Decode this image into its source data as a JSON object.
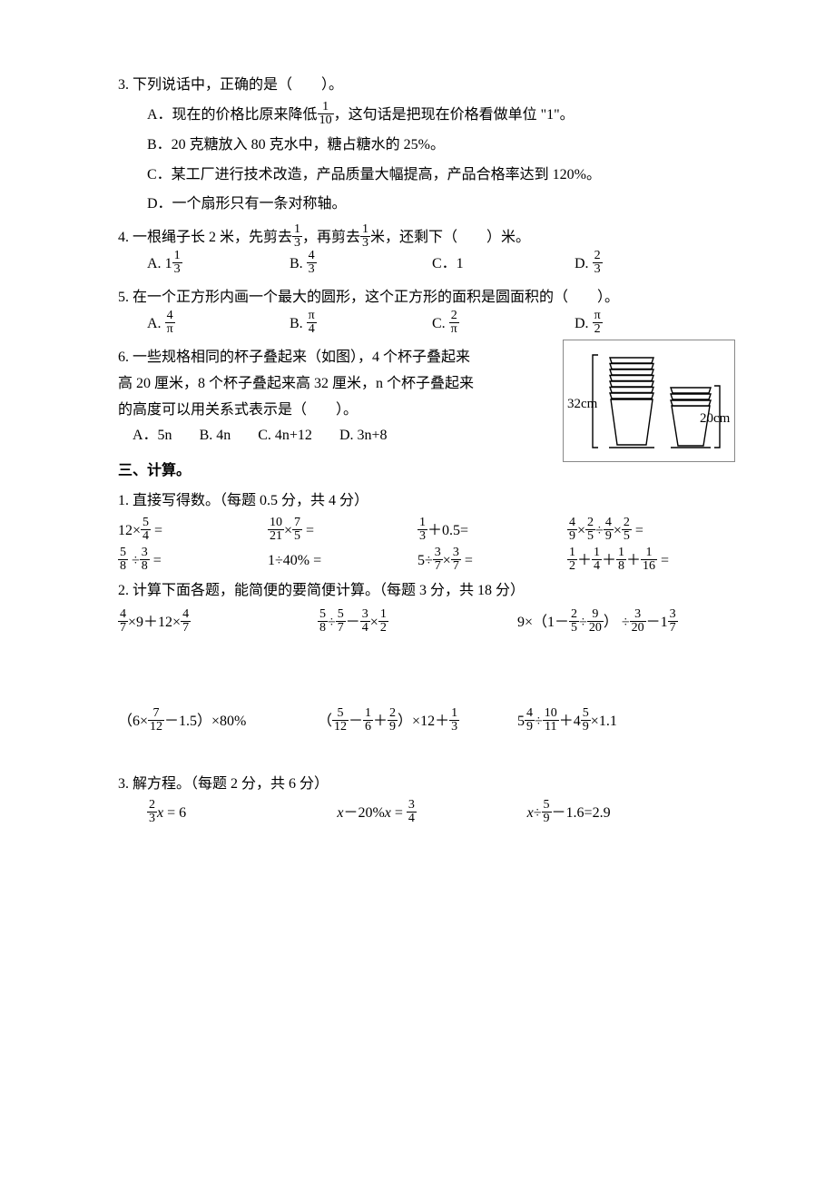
{
  "q3": {
    "stem": "3. 下列说话中，正确的是（　　）。",
    "A_pre": "A．现在的价格比原来降低",
    "A_frac_n": "1",
    "A_frac_d": "10",
    "A_post": "，这句话是把现在价格看做单位 \"1\"。",
    "B": "B．20 克糖放入 80 克水中，糖占糖水的 25%。",
    "C": "C．某工厂进行技术改造，产品质量大幅提高，产品合格率达到 120%。",
    "D": "D．一个扇形只有一条对称轴。"
  },
  "q4": {
    "stem_pre": "4. 一根绳子长 2 米，先剪去",
    "f1_n": "1",
    "f1_d": "3",
    "stem_mid": "，再剪去",
    "f2_n": "1",
    "f2_d": "3",
    "stem_post": "米，还剩下（　　）米。",
    "A_label": "A. ",
    "A_whole": "1",
    "A_n": "1",
    "A_d": "3",
    "B_label": "B. ",
    "B_n": "4",
    "B_d": "3",
    "C": "C．1",
    "D_label": "D. ",
    "D_n": "2",
    "D_d": "3"
  },
  "q5": {
    "stem": "5. 在一个正方形内画一个最大的圆形，这个正方形的面积是圆面积的（　　）。",
    "A_label": "A. ",
    "A_n": "4",
    "A_d": "π",
    "B_label": "B. ",
    "B_n": "π",
    "B_d": "4",
    "C_label": "C. ",
    "C_n": "2",
    "C_d": "π",
    "D_label": "D. ",
    "D_n": "π",
    "D_d": "2"
  },
  "q6": {
    "l1": "6. 一些规格相同的杯子叠起来（如图），4 个杯子叠起来",
    "l2": "高 20 厘米，8 个杯子叠起来高 32 厘米，n 个杯子叠起来",
    "l3": "的高度可以用关系式表示是（　　）。",
    "A": "A．5n",
    "B": "B. 4n",
    "C": "C. 4n+12",
    "D": "D. 3n+8",
    "fig_left": "32cm",
    "fig_right": "20cm",
    "fig_cup_color": "#000000",
    "fig_line_width": 1.4
  },
  "sec3_head": "三、计算。",
  "c1": {
    "title": "1. 直接写得数。（每题 0.5 分，共 4 分）",
    "r1_1_pre": "12×",
    "r1_1_n": "5",
    "r1_1_d": "4",
    "r1_1_post": " =",
    "r1_2_an": "10",
    "r1_2_ad": "21",
    "r1_2_mid": "×",
    "r1_2_bn": "7",
    "r1_2_bd": "5",
    "r1_2_post": " =",
    "r1_3_n": "1",
    "r1_3_d": "3",
    "r1_3_post": "＋0.5=",
    "r1_4_an": "4",
    "r1_4_ad": "9",
    "r1_4_m1": "×",
    "r1_4_bn": "2",
    "r1_4_bd": "5",
    "r1_4_m2": "÷",
    "r1_4_cn": "4",
    "r1_4_cd": "9",
    "r1_4_m3": "×",
    "r1_4_dn": "2",
    "r1_4_dd": "5",
    "r1_4_post": " =",
    "r2_1_an": "5",
    "r2_1_ad": "8",
    "r2_1_mid": " ÷",
    "r2_1_bn": "3",
    "r2_1_bd": "8",
    "r2_1_post": " =",
    "r2_2": "1÷40% =",
    "r2_3_pre": "5÷",
    "r2_3_an": "3",
    "r2_3_ad": "7",
    "r2_3_mid": "×",
    "r2_3_bn": "3",
    "r2_3_bd": "7",
    "r2_3_post": " =",
    "r2_4_an": "1",
    "r2_4_ad": "2",
    "r2_4_p1": "＋",
    "r2_4_bn": "1",
    "r2_4_bd": "4",
    "r2_4_p2": "＋",
    "r2_4_cn": "1",
    "r2_4_cd": "8",
    "r2_4_p3": "＋",
    "r2_4_dn": "1",
    "r2_4_dd": "16",
    "r2_4_post": " ="
  },
  "c2": {
    "title": "2. 计算下面各题，能简便的要简便计算。（每题 3 分，共 18 分）",
    "r1_1_an": "4",
    "r1_1_ad": "7",
    "r1_1_mid": "×9＋12×",
    "r1_1_bn": "4",
    "r1_1_bd": "7",
    "r1_2_an": "5",
    "r1_2_ad": "8",
    "r1_2_m1": "÷",
    "r1_2_bn": "5",
    "r1_2_bd": "7",
    "r1_2_m2": "－",
    "r1_2_cn": "3",
    "r1_2_cd": "4",
    "r1_2_m3": "×",
    "r1_2_dn": "1",
    "r1_2_dd": "2",
    "r1_3_pre": "9×（1－",
    "r1_3_an": "2",
    "r1_3_ad": "5",
    "r1_3_m1": "÷",
    "r1_3_bn": "9",
    "r1_3_bd": "20",
    "r1_3_m2": "） ÷",
    "r1_3_cn": "3",
    "r1_3_cd": "20",
    "r1_3_m3": "－1",
    "r1_3_dn": "3",
    "r1_3_dd": "7",
    "r2_1_pre": "（6×",
    "r2_1_an": "7",
    "r2_1_ad": "12",
    "r2_1_post": "－1.5）×80%",
    "r2_2_pre": "（",
    "r2_2_an": "5",
    "r2_2_ad": "12",
    "r2_2_m1": "－",
    "r2_2_bn": "1",
    "r2_2_bd": "6",
    "r2_2_m2": "＋",
    "r2_2_cn": "2",
    "r2_2_cd": "9",
    "r2_2_m3": "）×12＋",
    "r2_2_dn": "1",
    "r2_2_dd": "3",
    "r2_3_w1": "5",
    "r2_3_an": "4",
    "r2_3_ad": "9",
    "r2_3_m1": "÷",
    "r2_3_bn": "10",
    "r2_3_bd": "11",
    "r2_3_m2": "＋4",
    "r2_3_cn": "5",
    "r2_3_cd": "9",
    "r2_3_post": "×1.1"
  },
  "c3": {
    "title": "3. 解方程。（每题 2 分，共 6 分）",
    "e1_n": "2",
    "e1_d": "3",
    "e1_post": " = 6",
    "e2_mid": "－20%",
    "e2_post": " = ",
    "e2_n": "3",
    "e2_d": "4",
    "e3_mid": "÷",
    "e3_n": "5",
    "e3_d": "9",
    "e3_post": "－1.6=2.9"
  }
}
